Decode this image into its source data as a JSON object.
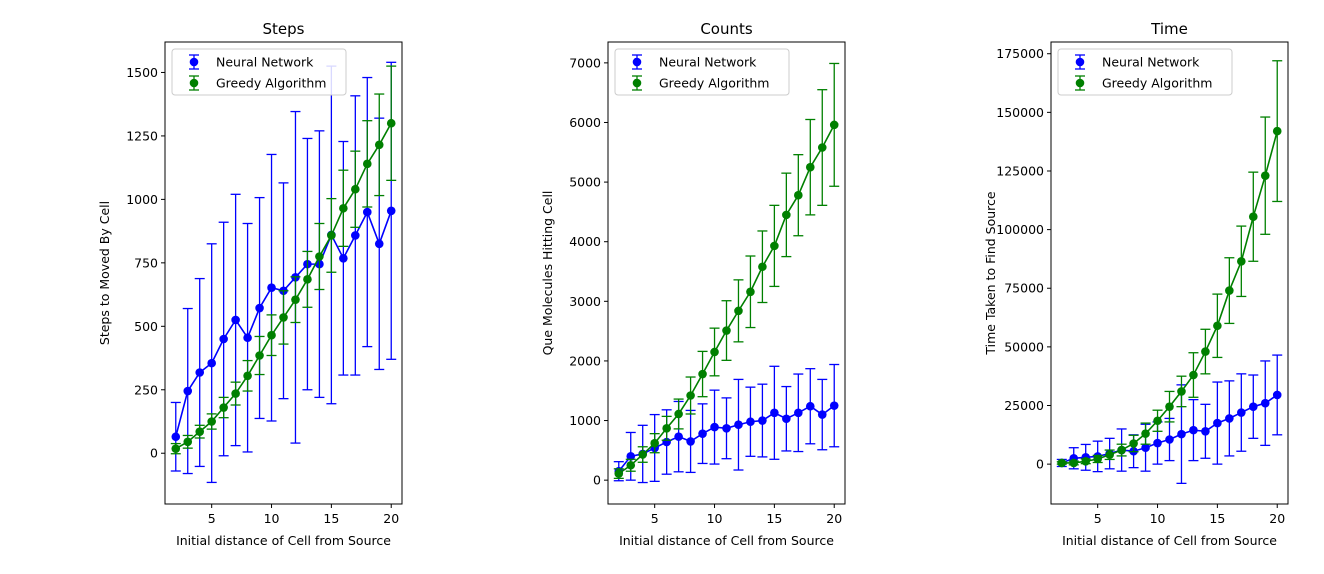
{
  "colors": {
    "nn": "#0000ff",
    "greedy": "#008000",
    "frame": "#000000",
    "background": "#ffffff"
  },
  "chart_data": [
    {
      "type": "line",
      "title": "Steps",
      "xlabel": "Initial distance of Cell from Source",
      "ylabel": "Steps to Moved By Cell",
      "xlim": [
        1.1,
        20.9
      ],
      "ylim": [
        -200,
        1620
      ],
      "xticks": [
        5,
        10,
        15,
        20
      ],
      "yticks": [
        0,
        250,
        500,
        750,
        1000,
        1250,
        1500
      ],
      "grid": false,
      "legend_position": "top-left",
      "x": [
        2,
        3,
        4,
        5,
        6,
        7,
        8,
        9,
        10,
        11,
        12,
        13,
        14,
        15,
        16,
        17,
        18,
        19,
        20
      ],
      "series": [
        {
          "name": "Neural Network",
          "color": "#0000ff",
          "y": [
            65,
            245,
            318,
            355,
            450,
            525,
            455,
            572,
            652,
            640,
            693,
            745,
            745,
            860,
            768,
            858,
            950,
            825,
            955
          ],
          "err": [
            135,
            325,
            370,
            470,
            460,
            495,
            450,
            435,
            525,
            425,
            653,
            495,
            525,
            665,
            460,
            550,
            530,
            495,
            585
          ]
        },
        {
          "name": "Greedy Algorithm",
          "color": "#008000",
          "y": [
            18,
            45,
            85,
            125,
            180,
            235,
            305,
            385,
            465,
            535,
            605,
            685,
            775,
            858,
            965,
            1040,
            1140,
            1215,
            1300
          ],
          "err": [
            20,
            25,
            25,
            30,
            40,
            45,
            60,
            75,
            80,
            105,
            90,
            110,
            130,
            145,
            150,
            150,
            170,
            200,
            225
          ]
        }
      ]
    },
    {
      "type": "line",
      "title": "Counts",
      "xlabel": "Initial distance of Cell from Source",
      "ylabel": "Que Molecules Hitting Cell",
      "xlim": [
        1.1,
        20.9
      ],
      "ylim": [
        -400,
        7350
      ],
      "xticks": [
        5,
        10,
        15,
        20
      ],
      "yticks": [
        0,
        1000,
        2000,
        3000,
        4000,
        5000,
        6000,
        7000
      ],
      "grid": false,
      "legend_position": "top-left",
      "x": [
        2,
        3,
        4,
        5,
        6,
        7,
        8,
        9,
        10,
        11,
        12,
        13,
        14,
        15,
        16,
        17,
        18,
        19,
        20
      ],
      "series": [
        {
          "name": "Neural Network",
          "color": "#0000ff",
          "y": [
            150,
            400,
            440,
            540,
            640,
            730,
            650,
            780,
            890,
            870,
            930,
            980,
            1000,
            1130,
            1030,
            1130,
            1240,
            1100,
            1250
          ],
          "err": [
            160,
            400,
            480,
            560,
            540,
            590,
            520,
            500,
            620,
            510,
            760,
            580,
            610,
            780,
            540,
            650,
            630,
            590,
            690
          ]
        },
        {
          "name": "Greedy Algorithm",
          "color": "#008000",
          "y": [
            110,
            250,
            430,
            620,
            870,
            1110,
            1420,
            1780,
            2150,
            2510,
            2840,
            3160,
            3580,
            3930,
            4450,
            4780,
            5250,
            5580,
            5960
          ],
          "err": [
            80,
            100,
            130,
            160,
            200,
            250,
            310,
            380,
            400,
            500,
            520,
            600,
            600,
            680,
            700,
            680,
            800,
            970,
            1030
          ]
        }
      ]
    },
    {
      "type": "line",
      "title": "Time",
      "xlabel": "Initial distance of Cell from Source",
      "ylabel": "Time Taken to Find Source",
      "xlim": [
        1.1,
        20.9
      ],
      "ylim": [
        -17000,
        180000
      ],
      "xticks": [
        5,
        10,
        15,
        20
      ],
      "yticks": [
        0,
        25000,
        50000,
        75000,
        100000,
        125000,
        150000,
        175000
      ],
      "grid": false,
      "legend_position": "top-left",
      "x": [
        2,
        3,
        4,
        5,
        6,
        7,
        8,
        9,
        10,
        11,
        12,
        13,
        14,
        15,
        16,
        17,
        18,
        19,
        20
      ],
      "series": [
        {
          "name": "Neural Network",
          "color": "#0000ff",
          "y": [
            500,
            2500,
            2900,
            3300,
            4500,
            6000,
            5500,
            7000,
            9000,
            10500,
            12800,
            14500,
            14000,
            17500,
            19500,
            22000,
            24500,
            26000,
            29500
          ],
          "err": [
            1500,
            4500,
            5500,
            6500,
            6500,
            9000,
            7000,
            10000,
            9000,
            9000,
            21000,
            13000,
            11500,
            17500,
            16000,
            16500,
            13500,
            18000,
            17000
          ]
        },
        {
          "name": "Greedy Algorithm",
          "color": "#008000",
          "y": [
            500,
            500,
            1200,
            2200,
            4000,
            6000,
            8800,
            13000,
            18500,
            24500,
            31000,
            38000,
            48000,
            59000,
            74000,
            86500,
            105500,
            123000,
            142000
          ],
          "err": [
            500,
            800,
            1000,
            1500,
            2000,
            2500,
            3500,
            4500,
            4500,
            6500,
            6500,
            9500,
            9500,
            13500,
            14000,
            15000,
            19000,
            25000,
            30000
          ]
        }
      ]
    }
  ]
}
